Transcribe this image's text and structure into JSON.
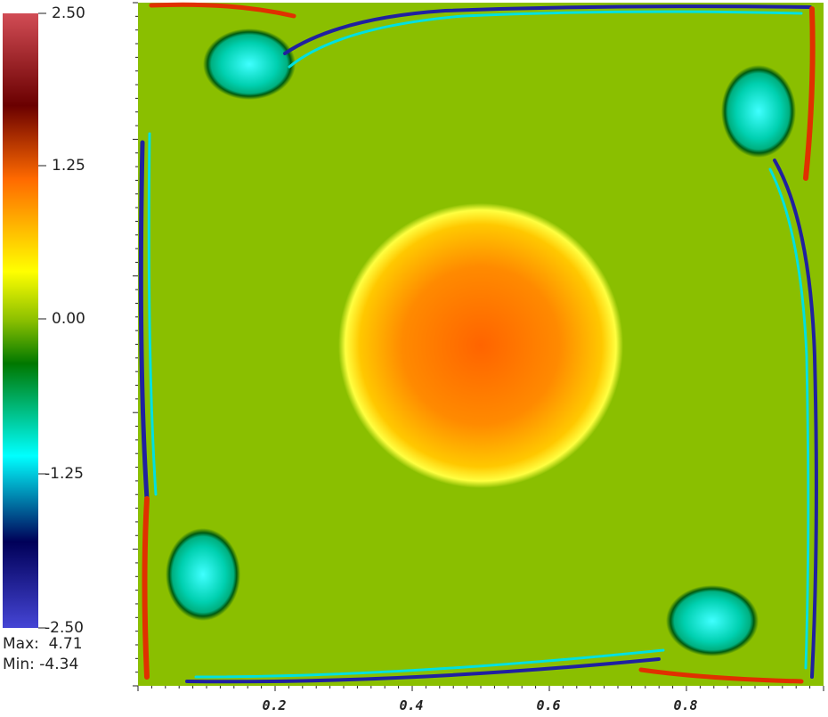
{
  "colorbar": {
    "ticks": [
      "2.50",
      "1.25",
      "0.00",
      "-1.25",
      "-2.50"
    ]
  },
  "stats": {
    "max": "Max:  4.71",
    "min": "Min: -4.34"
  },
  "x_axis": {
    "ticks": [
      "0.2",
      "0.4",
      "0.6",
      "0.8"
    ]
  }
}
